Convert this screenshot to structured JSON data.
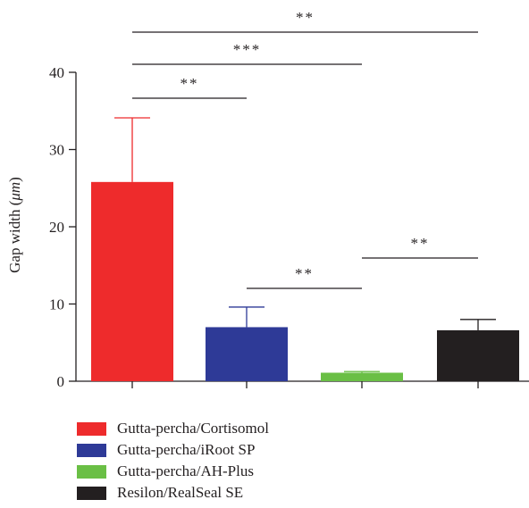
{
  "chart_data": {
    "type": "bar",
    "categories": [
      "Gutta-percha/Cortisomol",
      "Gutta-percha/iRoot SP",
      "Gutta-percha/AH-Plus",
      "Resilon/RealSeal SE"
    ],
    "values": [
      25.8,
      7.0,
      1.1,
      6.6
    ],
    "errors": [
      8.3,
      2.6,
      0.15,
      1.4
    ],
    "colors": [
      "#ee2b2c",
      "#2e3a97",
      "#6abf45",
      "#231f20"
    ],
    "ylabel_prefix": "Gap width (",
    "ylabel_unit": "μm",
    "ylabel_suffix": ")",
    "ylim": [
      0,
      40
    ],
    "yticks": [
      "0",
      "10",
      "20",
      "30",
      "40"
    ],
    "legend_position": "bottom",
    "significance": [
      {
        "from": 0,
        "to": 3,
        "label": "**"
      },
      {
        "from": 0,
        "to": 2,
        "label": "***"
      },
      {
        "from": 0,
        "to": 1,
        "label": "**"
      },
      {
        "from": 1,
        "to": 2,
        "label": "**"
      },
      {
        "from": 2,
        "to": 3,
        "label": "**"
      }
    ]
  }
}
